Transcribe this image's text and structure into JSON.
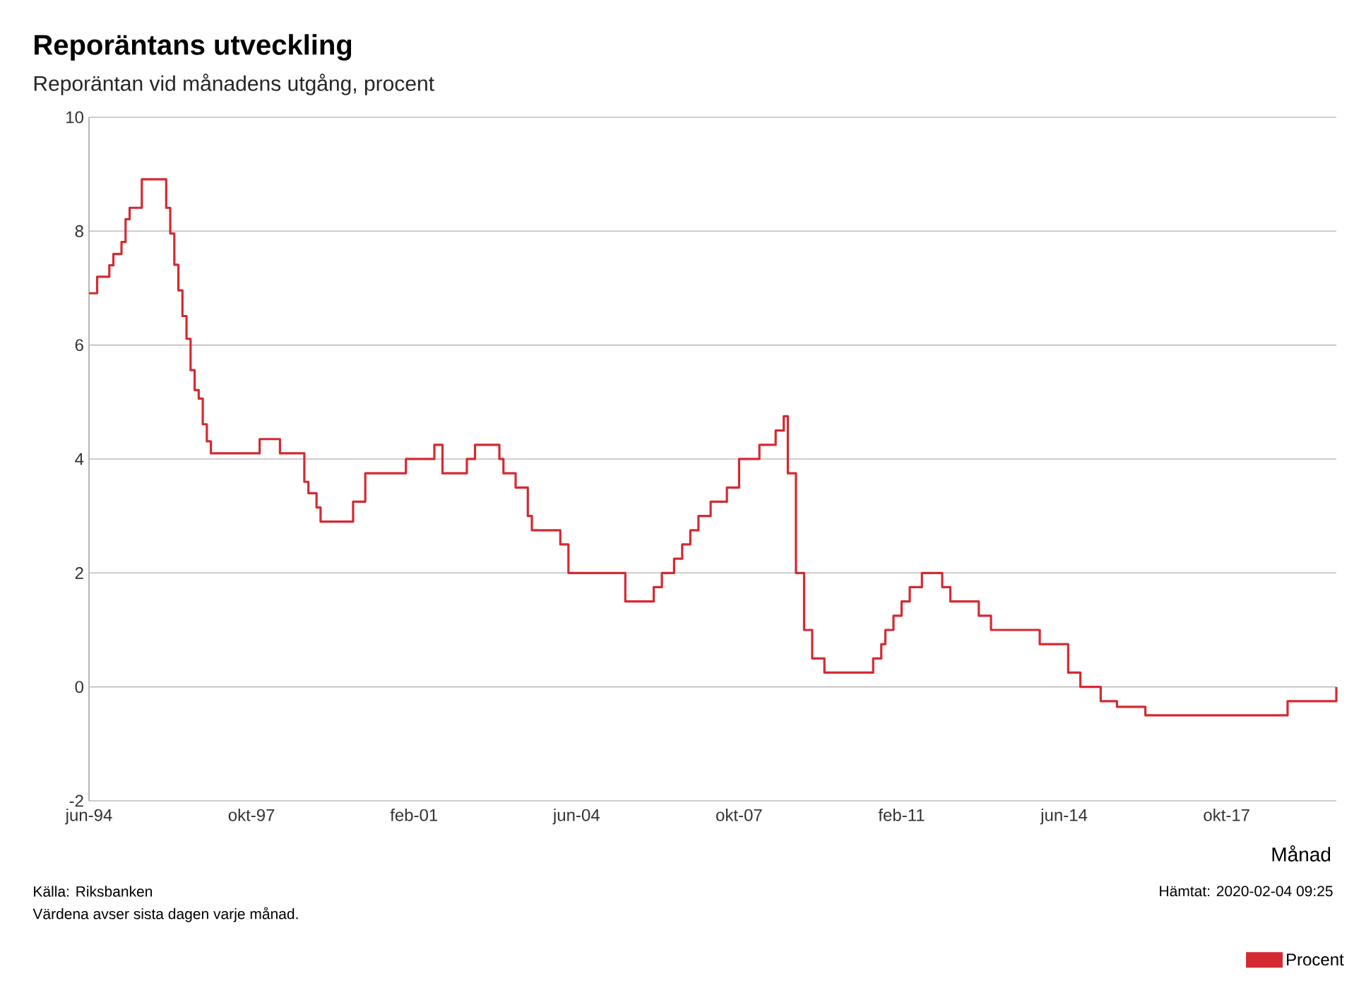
{
  "chart_data": {
    "type": "step",
    "title": "Reporäntans utveckling",
    "subtitle": "Reporäntan vid månadens utgång, procent",
    "xlabel": "Månad",
    "annotations": [
      "Källa: Riksbanken",
      "Värdena avser sista dagen varje månad.",
      "Hämtat: 2020-02-04 09:25"
    ],
    "series": [
      {
        "name": "Procent",
        "color": "#d42a32",
        "x": [
          "1994-06",
          "1994-08",
          "1994-11",
          "1994-12",
          "1995-02",
          "1995-03",
          "1995-04",
          "1995-07",
          "1996-01",
          "1996-02",
          "1996-03",
          "1996-04",
          "1996-05",
          "1996-06",
          "1996-07",
          "1996-08",
          "1996-09",
          "1996-10",
          "1996-11",
          "1996-12",
          "1997-12",
          "1998-05",
          "1998-11",
          "1998-12",
          "1999-02",
          "1999-03",
          "1999-11",
          "2000-02",
          "2000-12",
          "2001-07",
          "2001-09",
          "2002-03",
          "2002-05",
          "2002-11",
          "2002-12",
          "2003-03",
          "2003-06",
          "2003-07",
          "2004-02",
          "2004-04",
          "2005-06",
          "2006-01",
          "2006-03",
          "2006-06",
          "2006-08",
          "2006-10",
          "2006-12",
          "2007-03",
          "2007-07",
          "2007-10",
          "2008-03",
          "2008-07",
          "2008-09",
          "2008-10",
          "2008-12",
          "2009-02",
          "2009-04",
          "2009-07",
          "2010-07",
          "2010-09",
          "2010-10",
          "2010-12",
          "2011-02",
          "2011-04",
          "2011-07",
          "2011-12",
          "2012-02",
          "2012-09",
          "2012-12",
          "2013-12",
          "2014-07",
          "2014-10",
          "2015-03",
          "2015-07",
          "2016-02",
          "2019-01",
          "2020-01"
        ],
        "values": [
          6.91,
          7.2,
          7.4,
          7.6,
          7.81,
          8.21,
          8.41,
          8.91,
          8.41,
          7.96,
          7.41,
          6.96,
          6.51,
          6.11,
          5.56,
          5.21,
          5.06,
          4.61,
          4.31,
          4.1,
          4.35,
          4.1,
          3.6,
          3.4,
          3.15,
          2.9,
          3.25,
          3.75,
          4.0,
          4.25,
          3.75,
          4.0,
          4.25,
          4.0,
          3.75,
          3.5,
          3.0,
          2.75,
          2.5,
          2.0,
          1.5,
          1.75,
          2.0,
          2.25,
          2.5,
          2.75,
          3.0,
          3.25,
          3.5,
          4.0,
          4.25,
          4.5,
          4.75,
          3.75,
          2.0,
          1.0,
          0.5,
          0.25,
          0.5,
          0.75,
          1.0,
          1.25,
          1.5,
          1.75,
          2.0,
          1.75,
          1.5,
          1.25,
          1.0,
          0.75,
          0.25,
          0.0,
          -0.25,
          -0.35,
          -0.5,
          -0.25,
          0.0
        ]
      }
    ],
    "xlim": [
      "1994-06",
      "2020-01"
    ],
    "xticks": [
      {
        "value": "1994-06",
        "label": "jun-94"
      },
      {
        "value": "1997-10",
        "label": "okt-97"
      },
      {
        "value": "2001-02",
        "label": "feb-01"
      },
      {
        "value": "2004-06",
        "label": "jun-04"
      },
      {
        "value": "2007-10",
        "label": "okt-07"
      },
      {
        "value": "2011-02",
        "label": "feb-11"
      },
      {
        "value": "2014-06",
        "label": "jun-14"
      },
      {
        "value": "2017-10",
        "label": "okt-17"
      }
    ],
    "ylim": [
      -2,
      10
    ],
    "yticks": [
      -2,
      0,
      2,
      4,
      6,
      8,
      10
    ],
    "grid": "y",
    "legend": "bottom right",
    "marker": "none",
    "line_style": "solid"
  }
}
